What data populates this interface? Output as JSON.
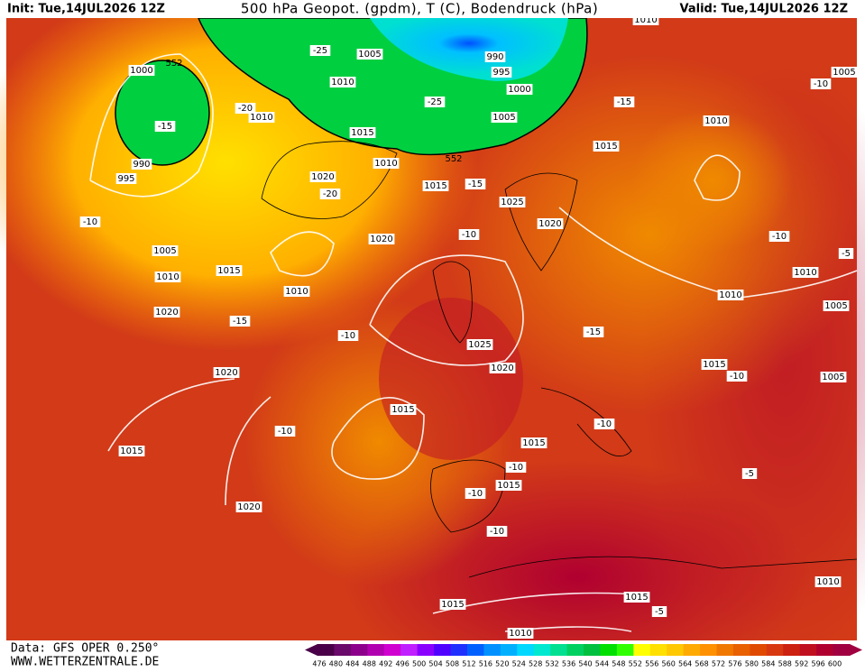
{
  "header": {
    "init": "Init: Tue,14JUL2026 12Z",
    "title": "500 hPa Geopot. (gpdm), T (C), Bodendruck (hPa)",
    "valid": "Valid: Tue,14JUL2026 12Z"
  },
  "footer": {
    "data": "Data: GFS OPER 0.250°",
    "site": "WWW.WETTERZENTRALE.DE"
  },
  "colorbar": {
    "labels": [
      476,
      480,
      484,
      488,
      492,
      496,
      500,
      504,
      508,
      512,
      516,
      520,
      524,
      528,
      532,
      536,
      540,
      544,
      548,
      552,
      556,
      560,
      564,
      568,
      572,
      576,
      580,
      584,
      588,
      592,
      596,
      600
    ],
    "colors": [
      "#4a0048",
      "#6a0a6a",
      "#8c008c",
      "#b000b0",
      "#d000d0",
      "#c020ff",
      "#8a00ff",
      "#5000ff",
      "#2030ff",
      "#0060ff",
      "#0090ff",
      "#00b0ff",
      "#00d8ff",
      "#00e8d0",
      "#00e090",
      "#00d060",
      "#00c040",
      "#00e000",
      "#30ff00",
      "#ffff00",
      "#ffe000",
      "#ffc800",
      "#ffaa00",
      "#ff9000",
      "#f07800",
      "#e86000",
      "#e04a00",
      "#d83810",
      "#cc2010",
      "#c01020",
      "#b00030",
      "#a00040"
    ]
  },
  "isobar_labels": [
    1010,
    1005,
    990,
    995,
    1000,
    1005,
    1010,
    1010,
    1015,
    1000,
    990,
    995,
    1020,
    1010,
    1015,
    1025,
    1020,
    1020,
    1005,
    1010,
    1015,
    1010,
    1020,
    1025,
    1020,
    1020,
    1015,
    1015,
    1020,
    1015,
    1015,
    1015,
    1015,
    1010,
    1010,
    1005,
    1010,
    1010,
    1005,
    1015,
    1005,
    1010,
    1015
  ],
  "temperature_labels": [
    -25,
    -20,
    -15,
    -25,
    -15,
    -20,
    -10,
    -10,
    -15,
    -10,
    -15,
    -10,
    -10,
    -10,
    -10,
    -5,
    -5,
    -10,
    -10,
    -10,
    -5,
    -15,
    -10
  ],
  "height_labels": [
    552,
    552
  ]
}
